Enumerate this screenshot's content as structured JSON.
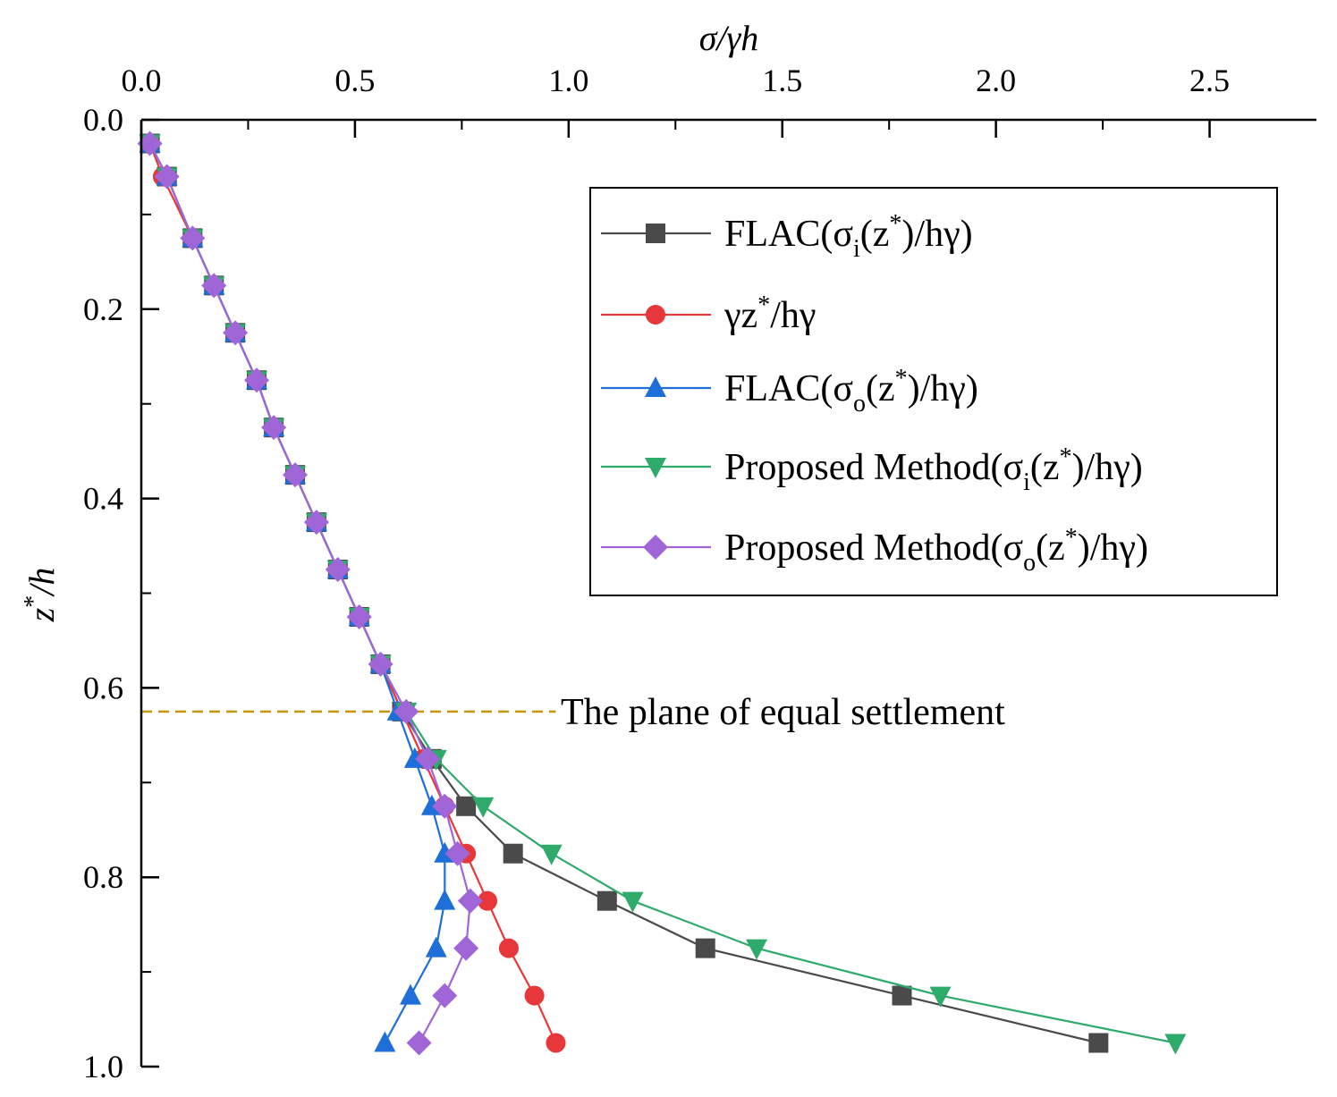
{
  "chart_data": {
    "type": "line",
    "xlabel": "σ/γh",
    "ylabel": "z*/h",
    "xlim": [
      0,
      2.75
    ],
    "ylim": [
      1.0,
      0.0
    ],
    "x_ticks": [
      "0.0",
      "0.5",
      "1.0",
      "1.5",
      "2.0",
      "2.5"
    ],
    "x_tick_values": [
      0,
      0.5,
      1.0,
      1.5,
      2.0,
      2.5
    ],
    "y_ticks": [
      "0.0",
      "0.2",
      "0.4",
      "0.6",
      "0.8",
      "1.0"
    ],
    "y_tick_values": [
      0,
      0.2,
      0.4,
      0.6,
      0.8,
      1.0
    ],
    "x_axis_position": "top",
    "legend_position": "top-right",
    "annotation": {
      "text": "The plane of equal settlement",
      "y": 0.625,
      "x_start": 0,
      "x_end": 0.97,
      "color": "#c8960c"
    },
    "series": [
      {
        "name": "FLAC(σi(z*)/hγ)",
        "legend": {
          "main": "FLAC(σ",
          "sub": "i",
          "mid": "(z",
          "sup": "*",
          "tail": ")/hγ)"
        },
        "color": "#4a4a4a",
        "marker": "square",
        "x": [
          0.02,
          0.06,
          0.12,
          0.17,
          0.22,
          0.27,
          0.31,
          0.36,
          0.41,
          0.46,
          0.51,
          0.56,
          0.61,
          0.68,
          0.76,
          0.87,
          1.09,
          1.32,
          1.78,
          2.24
        ],
        "y": [
          0.025,
          0.06,
          0.125,
          0.175,
          0.225,
          0.275,
          0.325,
          0.375,
          0.425,
          0.475,
          0.525,
          0.575,
          0.625,
          0.675,
          0.725,
          0.775,
          0.825,
          0.875,
          0.925,
          0.975
        ]
      },
      {
        "name": "γz*/hγ",
        "legend": {
          "main": "γz",
          "sub": "",
          "mid": "",
          "sup": "*",
          "tail": "/hγ"
        },
        "color": "#e8373a",
        "marker": "circle",
        "x": [
          0.02,
          0.05,
          0.12,
          0.17,
          0.22,
          0.27,
          0.31,
          0.36,
          0.41,
          0.46,
          0.51,
          0.56,
          0.61,
          0.66,
          0.71,
          0.76,
          0.81,
          0.86,
          0.92,
          0.97
        ],
        "y": [
          0.025,
          0.06,
          0.125,
          0.175,
          0.225,
          0.275,
          0.325,
          0.375,
          0.425,
          0.475,
          0.525,
          0.575,
          0.625,
          0.675,
          0.725,
          0.775,
          0.825,
          0.875,
          0.925,
          0.975
        ]
      },
      {
        "name": "FLAC(σo(z*)/hγ)",
        "legend": {
          "main": "FLAC(σ",
          "sub": "o",
          "mid": "(z",
          "sup": "*",
          "tail": ")/hγ)"
        },
        "color": "#1f6fd8",
        "marker": "triangle-up",
        "x": [
          0.02,
          0.06,
          0.12,
          0.17,
          0.22,
          0.27,
          0.31,
          0.36,
          0.41,
          0.46,
          0.51,
          0.56,
          0.6,
          0.64,
          0.68,
          0.71,
          0.71,
          0.69,
          0.63,
          0.57
        ],
        "y": [
          0.025,
          0.06,
          0.125,
          0.175,
          0.225,
          0.275,
          0.325,
          0.375,
          0.425,
          0.475,
          0.525,
          0.575,
          0.625,
          0.675,
          0.725,
          0.775,
          0.825,
          0.875,
          0.925,
          0.975
        ]
      },
      {
        "name": "Proposed Method(σi(z*)/hγ)",
        "legend": {
          "main": "Proposed Method(σ",
          "sub": "i",
          "mid": "(z",
          "sup": "*",
          "tail": ")/hγ)"
        },
        "color": "#2eaa6b",
        "marker": "triangle-down",
        "x": [
          0.02,
          0.06,
          0.12,
          0.17,
          0.22,
          0.27,
          0.31,
          0.36,
          0.41,
          0.46,
          0.51,
          0.56,
          0.62,
          0.69,
          0.8,
          0.96,
          1.15,
          1.44,
          1.87,
          2.42
        ],
        "y": [
          0.025,
          0.06,
          0.125,
          0.175,
          0.225,
          0.275,
          0.325,
          0.375,
          0.425,
          0.475,
          0.525,
          0.575,
          0.625,
          0.675,
          0.725,
          0.775,
          0.825,
          0.875,
          0.925,
          0.975
        ]
      },
      {
        "name": "Proposed Method(σo(z*)/hγ)",
        "legend": {
          "main": "Proposed Method(σ",
          "sub": "o",
          "mid": "(z",
          "sup": "*",
          "tail": ")/hγ)"
        },
        "color": "#a066d8",
        "marker": "diamond",
        "x": [
          0.02,
          0.06,
          0.12,
          0.17,
          0.22,
          0.27,
          0.31,
          0.36,
          0.41,
          0.46,
          0.51,
          0.56,
          0.62,
          0.67,
          0.71,
          0.74,
          0.77,
          0.76,
          0.71,
          0.65
        ],
        "y": [
          0.025,
          0.06,
          0.125,
          0.175,
          0.225,
          0.275,
          0.325,
          0.375,
          0.425,
          0.475,
          0.525,
          0.575,
          0.625,
          0.675,
          0.725,
          0.775,
          0.825,
          0.875,
          0.925,
          0.975
        ]
      }
    ]
  }
}
